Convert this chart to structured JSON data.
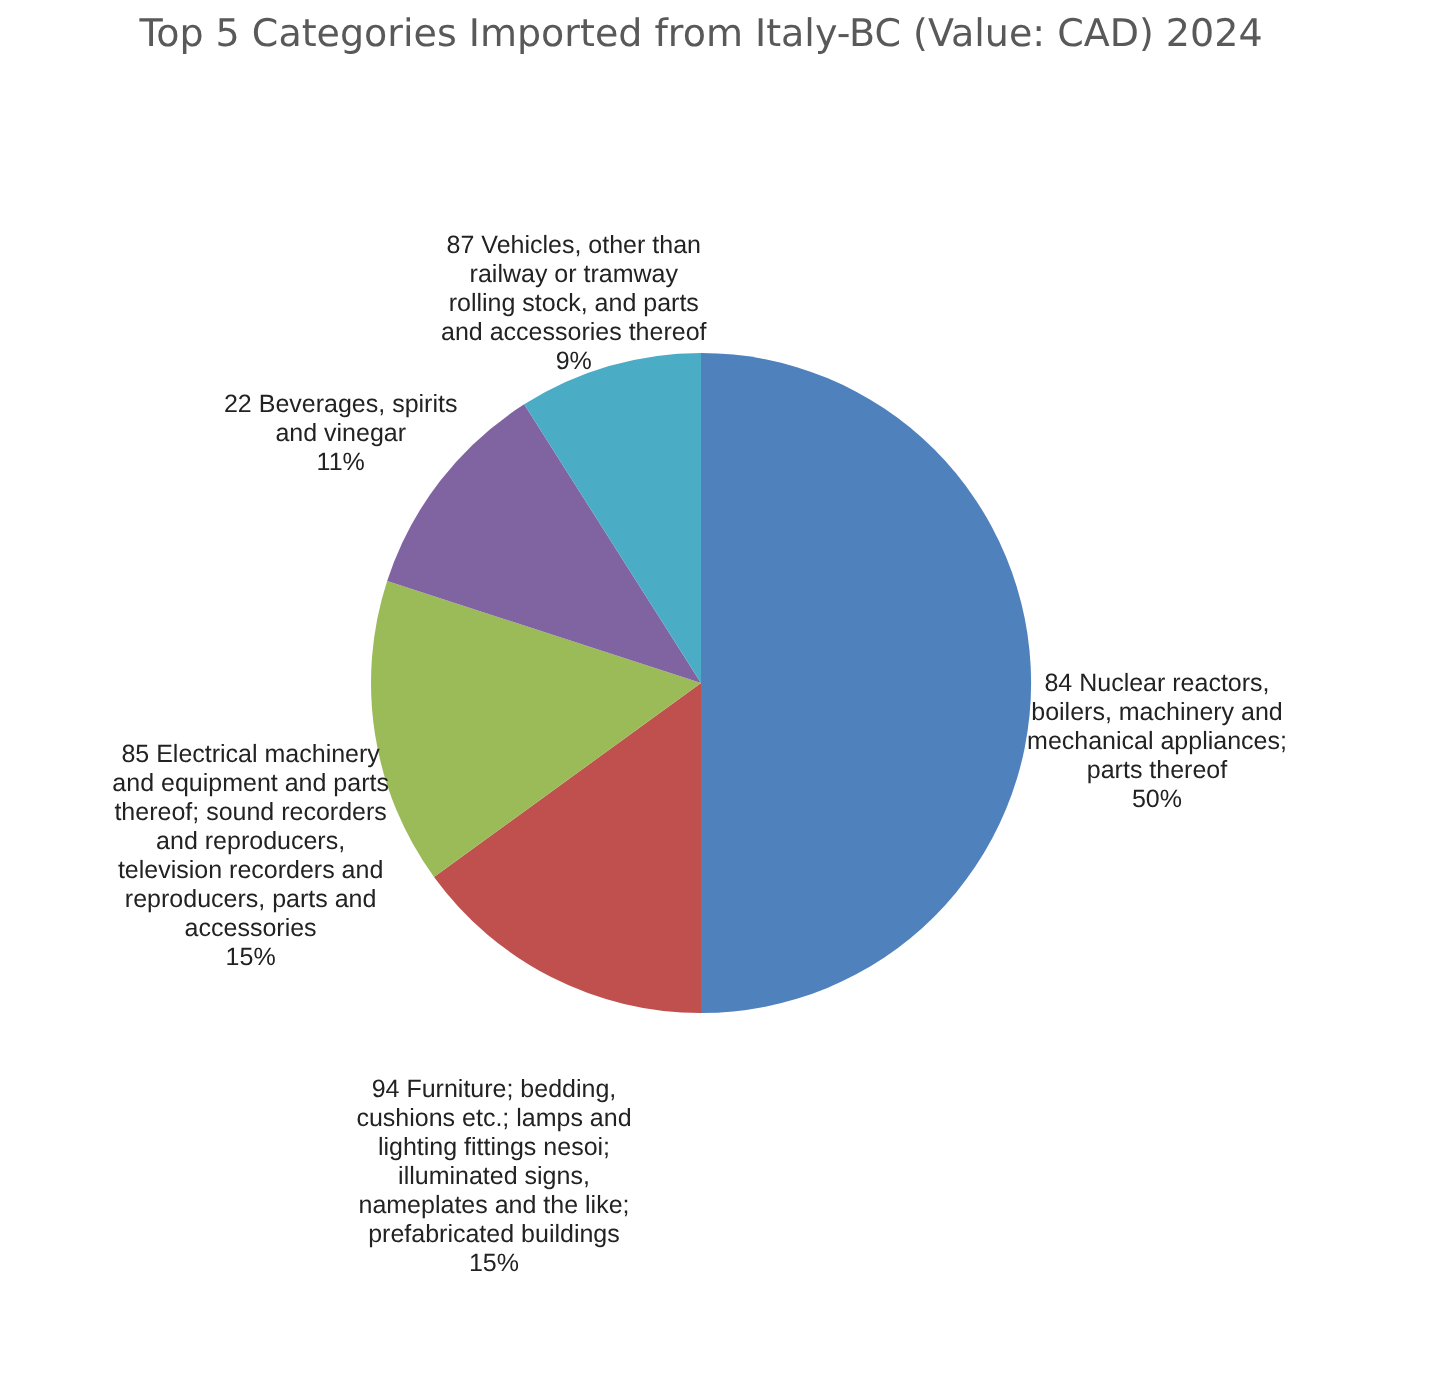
{
  "chart_data": {
    "type": "pie",
    "title": "Top 5 Categories Imported from Italy-BC (Value: CAD) 2024",
    "categories": [
      "84 Nuclear reactors, boilers, machinery and mechanical appliances; parts thereof",
      "94 Furniture; bedding, cushions etc.; lamps and lighting fittings nesoi; illuminated signs, nameplates and the like; prefabricated buildings",
      "85 Electrical machinery and equipment and parts thereof; sound recorders and reproducers, television recorders and reproducers, parts and accessories",
      "22 Beverages, spirits and vinegar",
      "87 Vehicles, other than railway or tramway rolling stock, and parts and accessories thereof"
    ],
    "values": [
      50,
      15,
      15,
      11,
      9
    ],
    "colors": [
      "#4f81bd",
      "#c0504d",
      "#9bbb59",
      "#8064a2",
      "#4bacc6"
    ],
    "value_labels": [
      "50%",
      "15%",
      "15%",
      "11%",
      "9%"
    ],
    "legend": false
  }
}
